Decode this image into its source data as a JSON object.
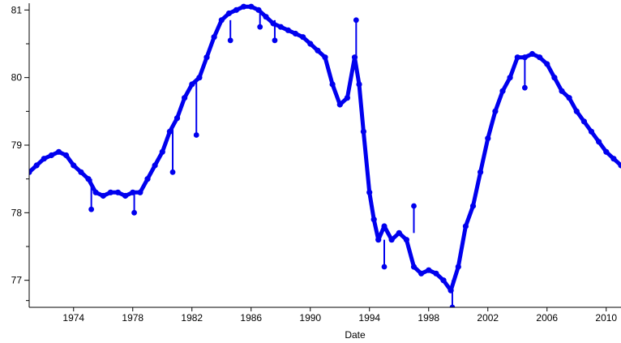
{
  "chart_data": {
    "type": "line",
    "title": "",
    "xlabel": "Date",
    "ylabel": "",
    "xlim": [
      1971.0,
      2011.0
    ],
    "ylim": [
      76.6,
      81.1
    ],
    "x_ticks": [
      1974,
      1978,
      1982,
      1986,
      1990,
      1994,
      1998,
      2002,
      2006,
      2010
    ],
    "x_tick_labels": [
      "1974",
      "1978",
      "1982",
      "1986",
      "1990",
      "1994",
      "1998",
      "2002",
      "2006",
      "2010"
    ],
    "y_ticks": [
      77,
      78,
      79,
      80,
      81
    ],
    "y_tick_labels": [
      "77",
      "78",
      "79",
      "80",
      "81"
    ],
    "y_minor_ticks": [
      76.7,
      77.5,
      78.5,
      79.5,
      80.5
    ],
    "grid": false,
    "legend": "none",
    "colors": {
      "series": "#0000ee",
      "axis": "#000000",
      "background": "#ffffff"
    },
    "marker": "dot",
    "series": [
      {
        "x": [
          1971.0,
          1971.5,
          1972.0,
          1972.5,
          1973.0,
          1973.5,
          1974.0,
          1974.5,
          1975.0,
          1975.5,
          1976.0,
          1976.5,
          1977.0,
          1977.5,
          1978.0,
          1978.5,
          1979.0,
          1979.5,
          1980.0,
          1980.5,
          1981.0,
          1981.5,
          1982.0,
          1982.5,
          1983.0,
          1983.5,
          1984.0,
          1984.5,
          1985.0,
          1985.5,
          1986.0,
          1986.5,
          1987.0,
          1987.5,
          1988.0,
          1988.5,
          1989.0,
          1989.5,
          1990.0,
          1990.5,
          1991.0,
          1991.5,
          1992.0,
          1992.5,
          1993.0,
          1993.3,
          1993.6,
          1994.0,
          1994.3,
          1994.6,
          1995.0,
          1995.5,
          1996.0,
          1996.5,
          1997.0,
          1997.5,
          1998.0,
          1998.5,
          1999.0,
          1999.5,
          2000.0,
          2000.5,
          2001.0,
          2001.5,
          2002.0,
          2002.5,
          2003.0,
          2003.5,
          2004.0,
          2004.5,
          2005.0,
          2005.5,
          2006.0,
          2006.5,
          2007.0,
          2007.5,
          2008.0,
          2008.5,
          2009.0,
          2009.5,
          2010.0,
          2010.5,
          2011.0
        ],
        "y": [
          78.6,
          78.7,
          78.8,
          78.85,
          78.9,
          78.85,
          78.7,
          78.6,
          78.5,
          78.3,
          78.25,
          78.3,
          78.3,
          78.25,
          78.3,
          78.3,
          78.5,
          78.7,
          78.9,
          79.2,
          79.4,
          79.7,
          79.9,
          80.0,
          80.3,
          80.6,
          80.85,
          80.95,
          81.0,
          81.05,
          81.05,
          81.0,
          80.9,
          80.8,
          80.75,
          80.7,
          80.65,
          80.6,
          80.5,
          80.4,
          80.3,
          79.9,
          79.6,
          79.7,
          80.3,
          79.9,
          79.2,
          78.3,
          77.9,
          77.6,
          77.8,
          77.6,
          77.7,
          77.6,
          77.2,
          77.1,
          77.15,
          77.1,
          77.0,
          76.85,
          77.2,
          77.8,
          78.1,
          78.6,
          79.1,
          79.5,
          79.8,
          80.0,
          80.3,
          80.3,
          80.35,
          80.3,
          80.2,
          80.0,
          79.8,
          79.7,
          79.5,
          79.35,
          79.2,
          79.05,
          78.9,
          78.8,
          78.7
        ]
      }
    ],
    "spikes": [
      {
        "x": 1975.2,
        "from": 78.5,
        "to": 78.05
      },
      {
        "x": 1978.1,
        "from": 78.3,
        "to": 78.0
      },
      {
        "x": 1980.7,
        "from": 79.3,
        "to": 78.6
      },
      {
        "x": 1982.3,
        "from": 79.95,
        "to": 79.15
      },
      {
        "x": 1984.6,
        "from": 80.85,
        "to": 80.55
      },
      {
        "x": 1986.6,
        "from": 81.0,
        "to": 80.75
      },
      {
        "x": 1987.6,
        "from": 80.85,
        "to": 80.55
      },
      {
        "x": 1993.1,
        "from": 80.3,
        "to": 80.85
      },
      {
        "x": 1995.0,
        "from": 77.6,
        "to": 77.2
      },
      {
        "x": 1997.0,
        "from": 77.7,
        "to": 78.1
      },
      {
        "x": 1999.6,
        "from": 77.0,
        "to": 76.6
      },
      {
        "x": 2004.5,
        "from": 80.3,
        "to": 79.85
      }
    ]
  }
}
